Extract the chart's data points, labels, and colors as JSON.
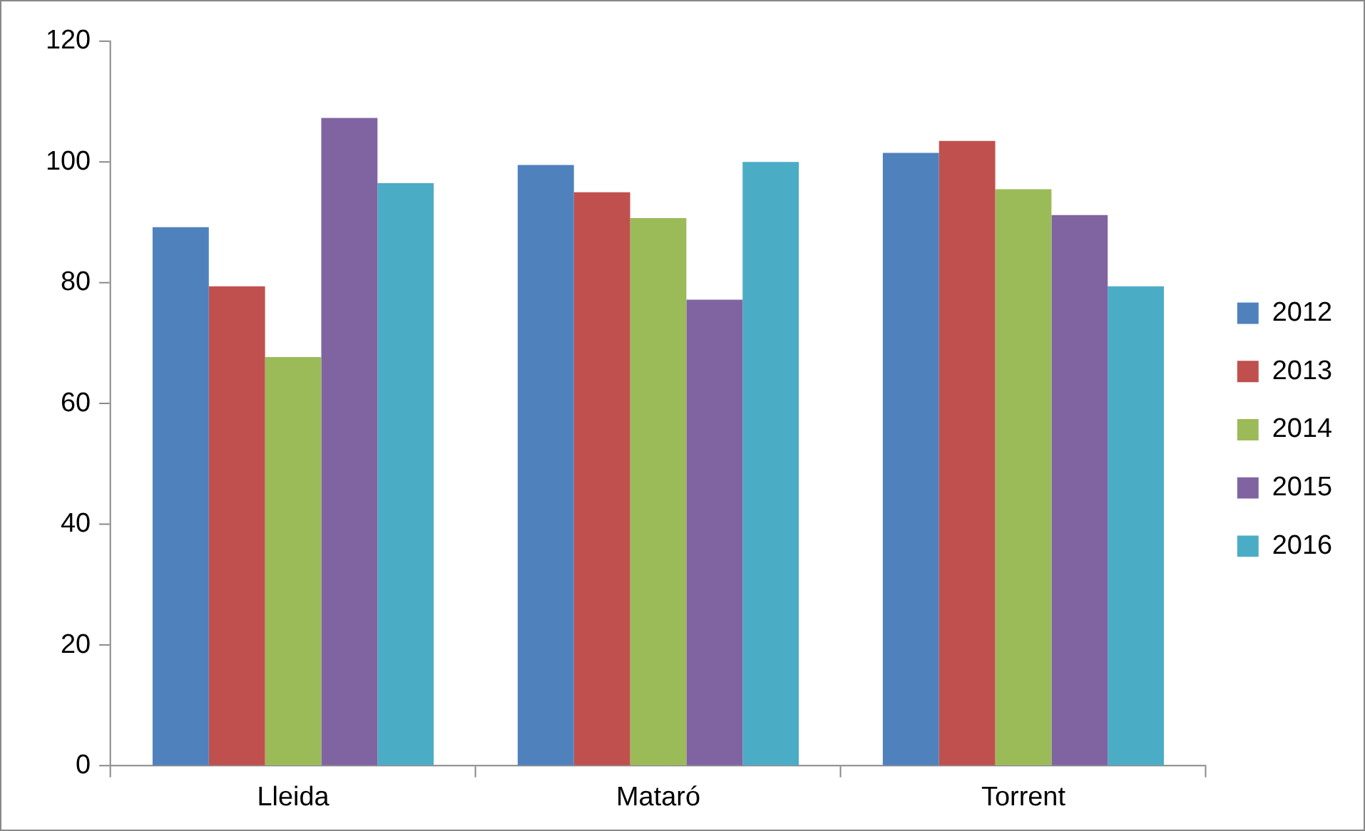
{
  "chart_data": {
    "type": "bar",
    "categories": [
      "Lleida",
      "Mataró",
      "Torrent"
    ],
    "series": [
      {
        "name": "2012",
        "color": "#4f81bd",
        "values": [
          89.2,
          99.5,
          101.5
        ]
      },
      {
        "name": "2013",
        "color": "#c0504d",
        "values": [
          79.4,
          95,
          103.5
        ]
      },
      {
        "name": "2014",
        "color": "#9bbb59",
        "values": [
          67.7,
          90.7,
          95.5
        ]
      },
      {
        "name": "2015",
        "color": "#8064a2",
        "values": [
          107.3,
          77.2,
          91.2
        ]
      },
      {
        "name": "2016",
        "color": "#4bacc6",
        "values": [
          96.5,
          100,
          79.4
        ]
      }
    ],
    "ylim": [
      0,
      120
    ],
    "yticks": [
      0,
      20,
      40,
      60,
      80,
      100,
      120
    ],
    "grid": false,
    "legend": "right"
  }
}
